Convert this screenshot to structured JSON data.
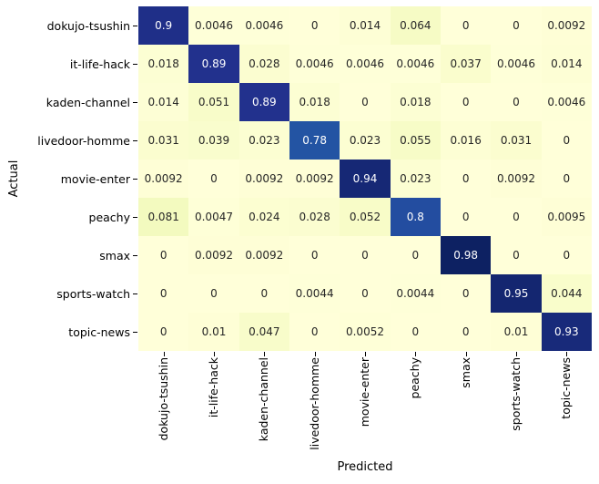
{
  "chart_data": {
    "type": "heatmap",
    "title": "",
    "xlabel": "Predicted",
    "ylabel": "Actual",
    "x_categories": [
      "dokujo-tsushin",
      "it-life-hack",
      "kaden-channel",
      "livedoor-homme",
      "movie-enter",
      "peachy",
      "smax",
      "sports-watch",
      "topic-news"
    ],
    "y_categories": [
      "dokujo-tsushin",
      "it-life-hack",
      "kaden-channel",
      "livedoor-homme",
      "movie-enter",
      "peachy",
      "smax",
      "sports-watch",
      "topic-news"
    ],
    "matrix": [
      [
        0.9,
        0.0046,
        0.0046,
        0,
        0.014,
        0.064,
        0,
        0,
        0.0092
      ],
      [
        0.018,
        0.89,
        0.028,
        0.0046,
        0.0046,
        0.0046,
        0.037,
        0.0046,
        0.014
      ],
      [
        0.014,
        0.051,
        0.89,
        0.018,
        0,
        0.018,
        0,
        0,
        0.0046
      ],
      [
        0.031,
        0.039,
        0.023,
        0.78,
        0.023,
        0.055,
        0.016,
        0.031,
        0
      ],
      [
        0.0092,
        0,
        0.0092,
        0.0092,
        0.94,
        0.023,
        0,
        0.0092,
        0
      ],
      [
        0.081,
        0.0047,
        0.024,
        0.028,
        0.052,
        0.8,
        0,
        0,
        0.0095
      ],
      [
        0,
        0.0092,
        0.0092,
        0,
        0,
        0,
        0.98,
        0,
        0
      ],
      [
        0,
        0,
        0,
        0.0044,
        0,
        0.0044,
        0,
        0.95,
        0.044
      ],
      [
        0,
        0.01,
        0.047,
        0,
        0.0052,
        0,
        0,
        0.01,
        0.93
      ]
    ],
    "value_range": [
      0,
      1
    ],
    "grid": "off",
    "legend": "none",
    "colormap": {
      "name": "YlGnBu",
      "stops": [
        {
          "t": 0.0,
          "color": "#ffffd9"
        },
        {
          "t": 0.125,
          "color": "#edf8b1"
        },
        {
          "t": 0.25,
          "color": "#c7e9b4"
        },
        {
          "t": 0.375,
          "color": "#7fcdbb"
        },
        {
          "t": 0.5,
          "color": "#41b6c4"
        },
        {
          "t": 0.625,
          "color": "#1d91c0"
        },
        {
          "t": 0.75,
          "color": "#225ea8"
        },
        {
          "t": 0.875,
          "color": "#253494"
        },
        {
          "t": 1.0,
          "color": "#081d58"
        }
      ]
    },
    "annotation_text_dark": "#262626",
    "annotation_text_light": "#ffffff",
    "axis_text_color": "#000000",
    "background": "#ffffff"
  }
}
